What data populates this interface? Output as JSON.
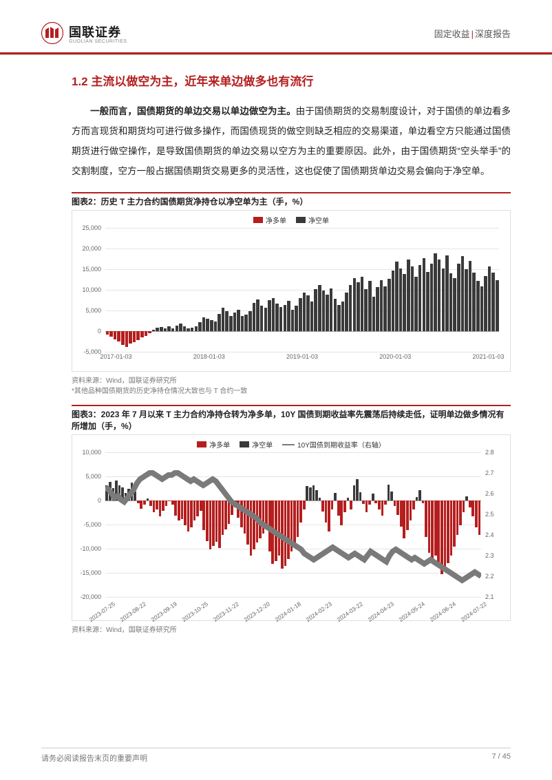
{
  "header": {
    "logo_cn": "国联证券",
    "logo_en": "GUOLIAN SECURITIES",
    "right_left": "固定收益",
    "right_right": "深度报告",
    "logo_color": "#b51e1e"
  },
  "section_heading": "1.2 主流以做空为主，近年来单边做多也有流行",
  "paragraph": {
    "lead_bold": "一般而言，国债期货的单边交易以单边做空为主。",
    "rest": "由于国债期货的交易制度设计，对于国债的单边看多方而言现货和期货均可进行做多操作，而国债现货的做空则缺乏相应的交易渠道，单边看空方只能通过国债期货进行做空操作，是导致国债期货的单边交易以空方为主的重要原因。此外，由于国债期货“空头举手”的交割制度，空方一般占据国债期货交易更多的灵活性，这也促使了国债期货单边交易会偏向于净空单。"
  },
  "chart1": {
    "title": "图表2：历史 T 主力合约国债期货净持仓以净空单为主（手，%）",
    "type": "bar",
    "source": "资料来源：Wind，国联证券研究所",
    "note": "*其他品种国债期货的历史净持仓情况大致也与 T 合约一致",
    "legend": [
      {
        "label": "净多单",
        "color": "#b51e1e"
      },
      {
        "label": "净空单",
        "color": "#3a3a3a"
      }
    ],
    "y_ticks": [
      -5000,
      0,
      5000,
      10000,
      15000,
      20000,
      25000
    ],
    "y_tick_labels": [
      "-5,000",
      "0",
      "5,000",
      "10,000",
      "15,000",
      "20,000",
      "25,000"
    ],
    "ylim": [
      -5000,
      25000
    ],
    "x_ticks": [
      "2017-01-03",
      "2018-01-03",
      "2019-01-03",
      "2020-01-03",
      "2021-01-03"
    ],
    "grid_color": "#e5e5e5",
    "background_color": "#ffffff",
    "samples": [
      -800,
      -1300,
      -2000,
      -2500,
      -3300,
      -3800,
      -3000,
      -2700,
      -2200,
      -1500,
      -1200,
      -500,
      300,
      900,
      1000,
      700,
      1100,
      600,
      1400,
      1800,
      1200,
      700,
      900,
      1200,
      2200,
      3400,
      3000,
      2600,
      2300,
      4200,
      5600,
      4800,
      3700,
      4500,
      5100,
      3600,
      4000,
      4800,
      6800,
      7600,
      6200,
      5600,
      7500,
      8000,
      6700,
      5800,
      6400,
      7400,
      5200,
      6100,
      8000,
      9300,
      8600,
      7200,
      10100,
      11200,
      9800,
      8900,
      10400,
      7800,
      6300,
      7100,
      9300,
      11200,
      12800,
      11800,
      13200,
      10200,
      12100,
      8400,
      10600,
      12400,
      10800,
      12600,
      14600,
      16800,
      15200,
      13800,
      17400,
      15600,
      13200,
      16000,
      17600,
      14400,
      16400,
      18800,
      17400,
      15200,
      18400,
      14000,
      12800,
      16400,
      18200,
      15000,
      17000,
      14200,
      12200,
      10800,
      13400,
      15600,
      14200,
      12400
    ]
  },
  "chart2": {
    "title": "图表3：2023 年 7 月以来 T 主力合约净持仓转为净多单，10Y 国债到期收益率先震荡后持续走低，证明单边做多情况有所增加（手，%）",
    "type": "bar+line",
    "source": "资料来源：Wind，国联证券研究所",
    "legend": [
      {
        "label": "净多单",
        "color": "#b51e1e",
        "kind": "bar"
      },
      {
        "label": "净空单",
        "color": "#3a3a3a",
        "kind": "bar"
      },
      {
        "label": "10Y国债到期收益率（右轴）",
        "color": "#7a7a7a",
        "kind": "line"
      }
    ],
    "y_left_ticks": [
      -20000,
      -15000,
      -10000,
      -5000,
      0,
      5000,
      10000
    ],
    "y_left_tick_labels": [
      "-20,000",
      "-15,000",
      "-10,000",
      "-5,000",
      "0",
      "5,000",
      "10,000"
    ],
    "y_left_lim": [
      -20000,
      10000
    ],
    "y_right_ticks": [
      2.1,
      2.2,
      2.3,
      2.4,
      2.5,
      2.6,
      2.7,
      2.8
    ],
    "y_right_lim": [
      2.1,
      2.8
    ],
    "x_ticks": [
      "2023-07-25",
      "2023-08-22",
      "2023-09-19",
      "2023-10-25",
      "2023-11-22",
      "2023-12-20",
      "2024-01-18",
      "2024-02-23",
      "2024-03-22",
      "2024-04-23",
      "2024-05-24",
      "2024-06-24",
      "2024-07-22"
    ],
    "grid_color": "#e5e5e5",
    "background_color": "#ffffff",
    "bar_samples": [
      3200,
      3800,
      2600,
      4200,
      3100,
      2700,
      1600,
      2500,
      3700,
      1800,
      -600,
      -1700,
      -900,
      400,
      -1200,
      -2400,
      -1800,
      -3300,
      -2200,
      -1200,
      -200,
      -900,
      -3100,
      -4200,
      -3800,
      -5200,
      -6400,
      -5600,
      -4200,
      -3300,
      -2100,
      -6100,
      -8400,
      -10200,
      -9400,
      -8600,
      -9800,
      -7200,
      -6000,
      -4800,
      -3000,
      -1400,
      -3600,
      -5600,
      -6800,
      -9100,
      -11400,
      -10200,
      -8700,
      -7800,
      -6900,
      -5400,
      -10600,
      -13100,
      -12600,
      -11400,
      -14100,
      -13600,
      -12200,
      -10500,
      -9100,
      -7600,
      -4500,
      -1800,
      3000,
      2700,
      3200,
      2100,
      600,
      -2300,
      -4600,
      -6400,
      -1800,
      1600,
      -3200,
      -5100,
      -2400,
      600,
      -1800,
      3100,
      4500,
      1700,
      -700,
      -2400,
      -900,
      1500,
      -600,
      -1900,
      -3200,
      -800,
      3300,
      1800,
      -1200,
      -3000,
      -5400,
      -7800,
      -6200,
      -4100,
      -1900,
      700,
      2200,
      -500,
      -7600,
      -10800,
      -12800,
      -11400,
      -13800,
      -15300,
      -14600,
      -13000,
      -11400,
      -9600,
      -7200,
      -5100,
      -2400,
      800,
      -1400,
      -3300,
      -5600,
      -7200
    ],
    "line_values": [
      2.63,
      2.62,
      2.6,
      2.58,
      2.59,
      2.57,
      2.56,
      2.58,
      2.6,
      2.62,
      2.65,
      2.67,
      2.68,
      2.69,
      2.7,
      2.7,
      2.69,
      2.68,
      2.67,
      2.68,
      2.69,
      2.69,
      2.7,
      2.7,
      2.69,
      2.68,
      2.67,
      2.66,
      2.67,
      2.66,
      2.65,
      2.64,
      2.65,
      2.66,
      2.67,
      2.66,
      2.64,
      2.62,
      2.6,
      2.58,
      2.56,
      2.55,
      2.54,
      2.53,
      2.52,
      2.51,
      2.5,
      2.49,
      2.48,
      2.46,
      2.45,
      2.44,
      2.43,
      2.42,
      2.41,
      2.4,
      2.39,
      2.38,
      2.37,
      2.36,
      2.35,
      2.34,
      2.33,
      2.31,
      2.3,
      2.29,
      2.28,
      2.29,
      2.3,
      2.31,
      2.32,
      2.33,
      2.34,
      2.33,
      2.32,
      2.31,
      2.3,
      2.29,
      2.3,
      2.31,
      2.3,
      2.29,
      2.28,
      2.3,
      2.32,
      2.31,
      2.3,
      2.29,
      2.28,
      2.27,
      2.3,
      2.32,
      2.33,
      2.32,
      2.31,
      2.3,
      2.29,
      2.28,
      2.29,
      2.28,
      2.27,
      2.26,
      2.27,
      2.28,
      2.27,
      2.26,
      2.25,
      2.24,
      2.23,
      2.22,
      2.21,
      2.2,
      2.19,
      2.18,
      2.19,
      2.2,
      2.21,
      2.22,
      2.21,
      2.2
    ]
  },
  "footer": {
    "left": "请务必阅读报告末页的重要声明",
    "right": "7 / 45"
  },
  "colors": {
    "accent": "#b51e1e",
    "text": "#222222",
    "grid": "#e5e5e5",
    "muted": "#777777"
  }
}
